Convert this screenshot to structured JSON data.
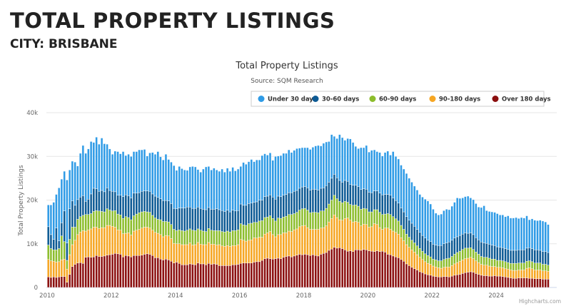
{
  "page": {
    "title": "TOTAL PROPERTY LISTINGS",
    "subtitle": "CITY: BRISBANE"
  },
  "chart_data": {
    "type": "bar",
    "stacked": true,
    "title": "Total Property Listings",
    "subtitle": "Source: SQM Research",
    "ylabel": "Total Property Listings",
    "xlabel": "",
    "ylim": [
      0,
      40000
    ],
    "yticks": [
      "0",
      "10k",
      "20k",
      "30k",
      "40k"
    ],
    "xticks": [
      "2010",
      "2012",
      "2014",
      "2016",
      "2018",
      "2020",
      "2022",
      "2024"
    ],
    "x_start": "2010-01",
    "x_interval": "month",
    "value_unit": "thousands",
    "legend_position": "top-right",
    "grid": true,
    "credit": "Highcharts.com",
    "series": [
      {
        "name": "Under 30 days",
        "color": "#2f9be6",
        "values": [
          5.0,
          6.8,
          8.5,
          7.7,
          12.1,
          10.0,
          9.1,
          14.4,
          8.9,
          9.1,
          9.9,
          7.7,
          10.0,
          11.5,
          11.0,
          11.5,
          12.0,
          10.5,
          11.8,
          10.8,
          12.0,
          11.0,
          10.0,
          9.5,
          8.5,
          9.3,
          10.0,
          9.5,
          10.3,
          9.0,
          9.5,
          9.5,
          9.5,
          9.5,
          9.8,
          9.5,
          9.5,
          8.0,
          8.8,
          9.5,
          9.6,
          10.5,
          9.6,
          9.3,
          10.6,
          9.5,
          9.5,
          9.8,
          8.8,
          9.5,
          9.0,
          8.7,
          8.4,
          9.2,
          9.6,
          9.5,
          8.6,
          8.3,
          9.2,
          9.8,
          9.4,
          9.0,
          9.4,
          8.9,
          8.8,
          9.5,
          9.0,
          9.6,
          9.3,
          9.8,
          9.2,
          9.5,
          8.6,
          9.8,
          9.4,
          9.6,
          10.0,
          9.3,
          9.6,
          9.2,
          10.2,
          9.8,
          9.4,
          9.6,
          8.4,
          9.8,
          9.2,
          9.4,
          9.6,
          9.4,
          9.8,
          9.2,
          9.4,
          9.6,
          9.2,
          9.0,
          8.9,
          9.2,
          9.3,
          9.6,
          10.0,
          10.2,
          9.7,
          10.2,
          10.0,
          9.3,
          10.0,
          8.7,
          9.0,
          10.5,
          10.2,
          9.2,
          9.8,
          10.4,
          9.8,
          8.9,
          8.7,
          9.6,
          9.4,
          10.0,
          9.2,
          9.7,
          9.4,
          9.0,
          9.3,
          8.9,
          9.6,
          9.9,
          9.2,
          10.6,
          10.1,
          10.1,
          9.8,
          9.8,
          9.9,
          9.6,
          9.4,
          9.2,
          9.0,
          8.7,
          8.8,
          8.9,
          9.0,
          8.6,
          8.0,
          7.3,
          7.0,
          7.2,
          7.6,
          7.7,
          7.4,
          7.8,
          8.2,
          8.9,
          8.5,
          8.3,
          8.3,
          8.5,
          8.0,
          8.0,
          7.8,
          7.5,
          7.9,
          8.5,
          7.5,
          7.5,
          7.6,
          7.6,
          7.6,
          7.4,
          7.5,
          7.3,
          7.7,
          7.4,
          7.4,
          7.5,
          7.2,
          7.4,
          7.3,
          7.4,
          6.4,
          6.8,
          6.8,
          6.7,
          6.9,
          7.0,
          6.8,
          6.4
        ]
      },
      {
        "name": "30-60 days",
        "color": "#0d5a94",
        "values": [
          4.2,
          3.2,
          2.4,
          5.0,
          1.8,
          3.0,
          7.0,
          4.0,
          7.0,
          6.0,
          5.0,
          4.5,
          4.5,
          4.5,
          3.0,
          3.5,
          4.5,
          5.3,
          5.0,
          4.5,
          4.8,
          4.6,
          4.8,
          4.5,
          4.5,
          4.3,
          4.3,
          4.5,
          5.0,
          5.0,
          5.0,
          5.0,
          5.2,
          4.8,
          4.6,
          4.7,
          4.7,
          4.8,
          4.8,
          4.9,
          5.0,
          5.0,
          4.8,
          4.8,
          4.8,
          4.8,
          4.8,
          4.8,
          5.0,
          5.0,
          5.2,
          5.3,
          5.3,
          5.0,
          5.0,
          5.1,
          5.0,
          5.0,
          5.0,
          5.0,
          4.8,
          4.8,
          4.9,
          5.0,
          4.8,
          4.8,
          4.7,
          4.8,
          4.6,
          4.7,
          4.5,
          4.4,
          4.5,
          4.5,
          4.6,
          4.6,
          4.6,
          4.6,
          4.7,
          4.8,
          4.7,
          4.8,
          4.8,
          4.8,
          4.9,
          5.0,
          5.0,
          5.0,
          5.0,
          5.0,
          5.0,
          5.0,
          5.1,
          5.0,
          5.0,
          5.0,
          5.0,
          5.1,
          5.2,
          5.3,
          5.2,
          5.2,
          5.2,
          5.3,
          5.2,
          5.0,
          5.0,
          4.8,
          4.8,
          4.8,
          4.7,
          4.8,
          4.8,
          4.6,
          4.6,
          4.5,
          4.5,
          4.5,
          4.5,
          4.5,
          4.5,
          4.4,
          4.3,
          4.3,
          4.4,
          4.5,
          4.5,
          4.4,
          4.4,
          4.3,
          4.2,
          4.1,
          4.0,
          4.0,
          4.0,
          3.9,
          3.9,
          3.8,
          3.8,
          3.7,
          3.6,
          3.6,
          3.5,
          3.5,
          3.4,
          3.4,
          3.5,
          3.5,
          3.6,
          3.6,
          3.7,
          3.7,
          3.7,
          3.6,
          3.6,
          3.5,
          3.5,
          3.4,
          3.4,
          3.4,
          3.3,
          3.3,
          3.3,
          3.3,
          3.2,
          3.2,
          3.2,
          3.1,
          3.1,
          3.0,
          3.0,
          3.0,
          3.0,
          3.0,
          3.0,
          3.0,
          3.0,
          3.0,
          3.0,
          3.0,
          3.0,
          3.0,
          3.0,
          3.0,
          2.9,
          2.9,
          2.9,
          2.9
        ]
      },
      {
        "name": "60-90 days",
        "color": "#8cbd2c",
        "values": [
          3.3,
          2.8,
          2.6,
          2.8,
          3.0,
          5.5,
          4.0,
          2.0,
          3.5,
          4.0,
          3.0,
          3.5,
          3.5,
          3.5,
          3.8,
          3.5,
          3.5,
          3.6,
          3.8,
          4.0,
          3.7,
          3.6,
          3.8,
          3.5,
          3.5,
          3.8,
          3.6,
          3.5,
          3.5,
          3.8,
          3.5,
          3.5,
          3.5,
          3.7,
          3.8,
          3.7,
          3.6,
          3.5,
          3.6,
          3.4,
          3.3,
          3.2,
          3.4,
          3.5,
          3.2,
          3.2,
          3.2,
          3.2,
          3.0,
          3.2,
          3.2,
          3.1,
          3.3,
          3.2,
          3.4,
          3.2,
          3.1,
          3.2,
          3.1,
          3.0,
          3.2,
          3.2,
          3.1,
          3.3,
          3.2,
          3.3,
          3.3,
          3.3,
          3.3,
          3.4,
          3.4,
          3.4,
          3.6,
          3.5,
          3.6,
          3.8,
          3.8,
          3.5,
          3.6,
          3.7,
          3.8,
          3.8,
          3.6,
          3.6,
          3.7,
          3.6,
          3.8,
          3.7,
          3.6,
          3.8,
          3.8,
          3.9,
          3.7,
          3.8,
          3.8,
          3.9,
          3.9,
          4.0,
          3.8,
          3.9,
          3.9,
          3.8,
          3.9,
          3.8,
          4.0,
          4.1,
          4.2,
          4.5,
          4.3,
          4.2,
          4.0,
          3.9,
          3.6,
          3.6,
          3.8,
          3.8,
          3.7,
          3.8,
          3.6,
          3.6,
          3.5,
          3.4,
          3.2,
          3.4,
          3.5,
          3.4,
          3.2,
          3.3,
          3.4,
          3.3,
          3.1,
          3.0,
          2.8,
          2.6,
          2.4,
          2.3,
          2.2,
          2.1,
          2.0,
          2.0,
          1.9,
          1.8,
          1.8,
          1.7,
          1.6,
          1.6,
          1.6,
          1.7,
          1.8,
          1.9,
          2.0,
          2.1,
          2.2,
          2.3,
          2.3,
          2.4,
          2.4,
          2.3,
          2.2,
          2.1,
          2.0,
          1.9,
          1.8,
          1.8,
          1.8,
          1.8,
          1.7,
          1.7,
          1.6,
          1.6,
          1.6,
          1.6,
          1.5,
          1.5,
          1.6,
          1.6,
          1.6,
          1.6,
          1.6,
          1.6,
          1.6,
          1.6,
          1.6,
          1.6,
          1.6,
          1.5,
          1.5,
          1.4
        ]
      },
      {
        "name": "90-180 days",
        "color": "#f6a623",
        "values": [
          4.0,
          3.8,
          3.6,
          3.5,
          3.5,
          3.8,
          4.0,
          3.0,
          4.5,
          5.0,
          5.5,
          6.5,
          7.0,
          7.5,
          6.0,
          6.2,
          6.5,
          6.8,
          6.5,
          6.4,
          6.6,
          6.5,
          6.8,
          6.7,
          6.4,
          6.0,
          5.5,
          5.5,
          5.3,
          5.1,
          5.3,
          5.0,
          5.6,
          5.8,
          6.0,
          6.2,
          6.2,
          6.1,
          6.0,
          5.8,
          5.8,
          5.6,
          5.6,
          5.3,
          5.4,
          5.5,
          5.2,
          4.5,
          4.2,
          4.5,
          4.6,
          4.6,
          4.6,
          4.8,
          4.4,
          4.6,
          4.7,
          4.5,
          4.4,
          4.6,
          4.8,
          4.6,
          4.5,
          4.4,
          4.8,
          4.5,
          4.4,
          4.6,
          4.4,
          4.4,
          4.4,
          4.5,
          5.5,
          5.2,
          5.0,
          5.2,
          5.3,
          5.6,
          5.4,
          5.6,
          5.3,
          5.6,
          5.8,
          6.2,
          5.6,
          5.0,
          5.4,
          5.5,
          5.6,
          5.4,
          5.7,
          5.8,
          6.0,
          6.0,
          6.3,
          6.6,
          6.6,
          6.2,
          6.0,
          5.8,
          6.0,
          6.1,
          6.0,
          5.9,
          6.1,
          6.5,
          7.0,
          7.4,
          7.0,
          6.4,
          6.5,
          7.2,
          7.6,
          7.0,
          6.8,
          6.5,
          6.3,
          5.6,
          5.8,
          5.8,
          5.4,
          5.6,
          6.4,
          6.0,
          5.5,
          5.0,
          5.5,
          6.0,
          5.8,
          5.7,
          5.6,
          5.4,
          5.0,
          4.7,
          4.4,
          4.2,
          4.0,
          3.8,
          3.5,
          3.3,
          3.0,
          2.8,
          2.6,
          2.5,
          2.3,
          2.2,
          2.1,
          2.0,
          2.1,
          2.2,
          2.3,
          2.4,
          2.6,
          2.8,
          3.0,
          3.1,
          3.2,
          3.2,
          3.3,
          3.1,
          2.9,
          2.7,
          2.5,
          2.4,
          2.4,
          2.3,
          2.2,
          2.1,
          2.0,
          2.0,
          2.0,
          1.9,
          1.9,
          1.8,
          1.8,
          1.8,
          1.8,
          1.8,
          1.8,
          2.2,
          2.4,
          2.2,
          2.0,
          2.0,
          2.0,
          1.9,
          1.9,
          1.8
        ]
      },
      {
        "name": "Over 180 days",
        "color": "#8b0f0f",
        "values": [
          2.4,
          2.3,
          2.4,
          2.3,
          2.4,
          2.5,
          2.5,
          1.2,
          3.0,
          4.8,
          5.3,
          5.6,
          5.7,
          5.5,
          6.9,
          7.0,
          6.9,
          7.0,
          7.3,
          7.1,
          7.1,
          7.2,
          7.4,
          7.5,
          7.6,
          7.8,
          7.7,
          7.6,
          7.0,
          7.3,
          7.2,
          7.0,
          7.3,
          7.3,
          7.3,
          7.4,
          7.6,
          7.7,
          7.6,
          7.3,
          6.8,
          6.8,
          6.5,
          6.3,
          6.5,
          6.3,
          6.0,
          5.6,
          5.8,
          5.5,
          5.2,
          5.2,
          5.2,
          5.4,
          5.3,
          5.2,
          5.6,
          5.4,
          5.4,
          5.2,
          5.5,
          5.3,
          5.4,
          5.3,
          5.0,
          5.0,
          5.0,
          5.0,
          5.0,
          5.2,
          5.2,
          5.3,
          5.5,
          5.6,
          5.6,
          5.6,
          5.6,
          5.8,
          5.9,
          5.9,
          6.2,
          6.6,
          6.7,
          6.6,
          6.5,
          6.6,
          6.7,
          6.6,
          6.9,
          7.1,
          7.2,
          7.0,
          7.2,
          7.4,
          7.6,
          7.5,
          7.6,
          7.5,
          7.3,
          7.5,
          7.3,
          7.2,
          7.6,
          7.8,
          8.0,
          8.5,
          8.8,
          9.2,
          9.0,
          9.1,
          8.9,
          8.6,
          8.3,
          8.4,
          8.2,
          8.6,
          8.6,
          8.5,
          8.7,
          8.6,
          8.4,
          8.3,
          8.2,
          8.4,
          8.2,
          8.3,
          8.1,
          7.6,
          7.5,
          7.2,
          7.0,
          6.8,
          6.4,
          6.0,
          5.4,
          5.0,
          4.6,
          4.3,
          4.0,
          3.6,
          3.4,
          3.1,
          2.9,
          2.8,
          2.6,
          2.5,
          2.4,
          2.4,
          2.5,
          2.5,
          2.4,
          2.6,
          2.8,
          2.9,
          3.0,
          3.2,
          3.4,
          3.5,
          3.6,
          3.5,
          3.2,
          3.0,
          2.8,
          2.7,
          2.7,
          2.6,
          2.6,
          2.7,
          2.6,
          2.6,
          2.5,
          2.4,
          2.3,
          2.2,
          2.1,
          2.1,
          2.2,
          2.2,
          2.2,
          2.2,
          2.1,
          2.1,
          2.0,
          2.0,
          2.0,
          1.9,
          1.9,
          1.9
        ]
      }
    ]
  }
}
